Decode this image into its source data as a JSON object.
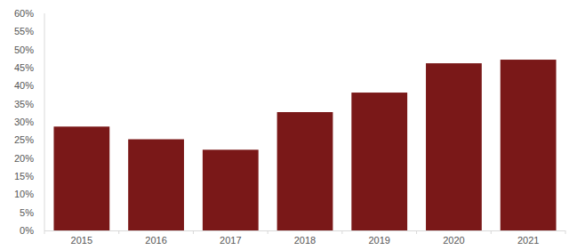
{
  "chart_data": {
    "type": "bar",
    "categories": [
      "2015",
      "2016",
      "2017",
      "2018",
      "2019",
      "2020",
      "2021"
    ],
    "values": [
      28.7,
      25.2,
      22.3,
      32.7,
      38.1,
      46.2,
      47.2
    ],
    "color": "#7a1818",
    "ylim": [
      0,
      60
    ],
    "yticks": [
      {
        "value": 0,
        "label": "0%"
      },
      {
        "value": 5,
        "label": "5%"
      },
      {
        "value": 10,
        "label": "10%"
      },
      {
        "value": 15,
        "label": "15%"
      },
      {
        "value": 20,
        "label": "20%"
      },
      {
        "value": 25,
        "label": "25%"
      },
      {
        "value": 30,
        "label": "30%"
      },
      {
        "value": 35,
        "label": "35%"
      },
      {
        "value": 40,
        "label": "40%"
      },
      {
        "value": 45,
        "label": "45%"
      },
      {
        "value": 50,
        "label": "50%"
      },
      {
        "value": 55,
        "label": "55%"
      },
      {
        "value": 60,
        "label": "60%"
      }
    ],
    "grid": false
  }
}
